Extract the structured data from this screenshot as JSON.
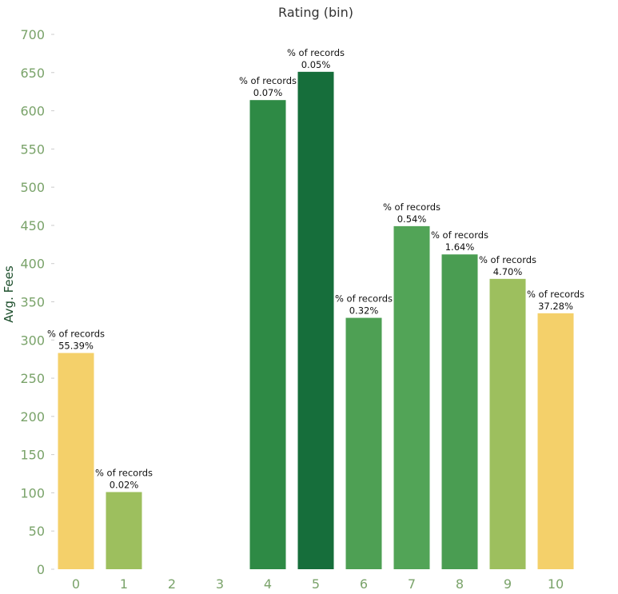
{
  "chart_data": {
    "type": "bar",
    "title": "Rating (bin)",
    "ylabel": "Avg. Fees",
    "xlabel": "",
    "ylim": [
      0,
      700
    ],
    "yticks": [
      0,
      50,
      100,
      150,
      200,
      250,
      300,
      350,
      400,
      450,
      500,
      550,
      600,
      650,
      700
    ],
    "categories": [
      "0",
      "1",
      "2",
      "3",
      "4",
      "5",
      "6",
      "7",
      "8",
      "9",
      "10"
    ],
    "values": [
      283,
      101,
      null,
      null,
      614,
      651,
      329,
      449,
      412,
      380,
      335
    ],
    "bar_colors": [
      "#f4d06a",
      "#9dbf5e",
      null,
      null,
      "#2e8a45",
      "#166e3b",
      "#4ea054",
      "#52a457",
      "#4a9d52",
      "#9dbf5e",
      "#f4d06a"
    ],
    "label_prefix": "% of records",
    "labels": [
      "55.39%",
      "0.02%",
      null,
      null,
      "0.07%",
      "0.05%",
      "0.32%",
      "0.54%",
      "1.64%",
      "4.70%",
      "37.28%"
    ],
    "grid": false,
    "legend": "none"
  }
}
